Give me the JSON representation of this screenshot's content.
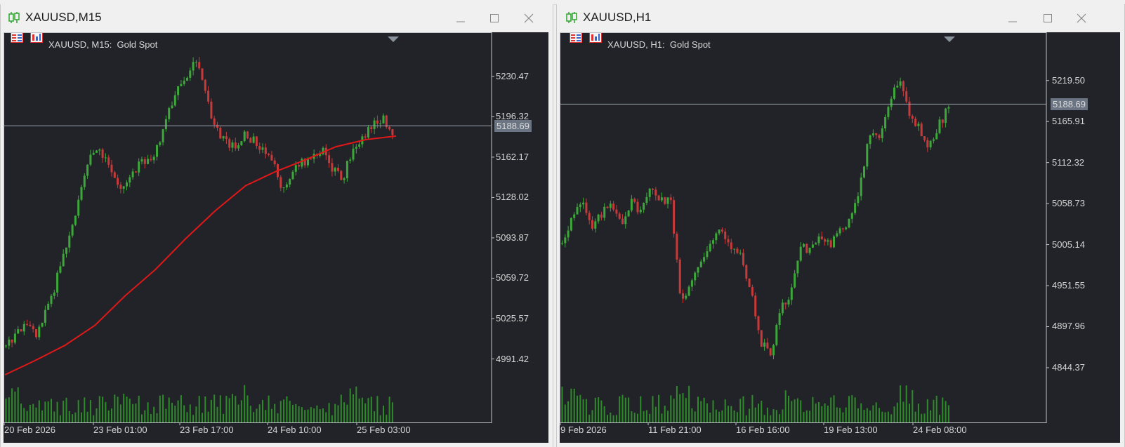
{
  "colors": {
    "chart_bg": "#222328",
    "bull": "#3da83a",
    "bear": "#c83a3a",
    "volume": "#2e8b2a",
    "ma": "#e01818",
    "grid_line": "#9aa2ac",
    "price_tag_bg": "#6a7483"
  },
  "windows": [
    {
      "title": "XAUUSD,M15",
      "legend": "XAUUSD, M15:  Gold Spot",
      "current_price": "5188.69",
      "price_labels": [
        "5230.47",
        "5196.32",
        "5162.17",
        "5128.02",
        "5093.87",
        "5059.72",
        "5025.57",
        "4991.42"
      ],
      "date_labels": [
        "20 Feb 2026",
        "23 Feb 01:00",
        "23 Feb 17:00",
        "24 Feb 10:00",
        "25 Feb 03:00"
      ],
      "icons": [
        "minimize-icon",
        "maximize-icon",
        "close-icon"
      ]
    },
    {
      "title": "XAUUSD,H1",
      "legend": "XAUUSD, H1:  Gold Spot",
      "current_price": "5188.69",
      "price_labels": [
        "5219.50",
        "5165.91",
        "5112.32",
        "5058.73",
        "5005.14",
        "4951.55",
        "4897.96",
        "4844.37"
      ],
      "date_labels": [
        "9 Feb 2026",
        "11 Feb 21:00",
        "16 Feb 16:00",
        "19 Feb 13:00",
        "24 Feb 08:00"
      ],
      "icons": [
        "minimize-icon",
        "maximize-icon",
        "close-icon"
      ]
    }
  ],
  "chart_data": [
    {
      "type": "candlestick",
      "title": "XAUUSD, M15:  Gold Spot",
      "ylim": [
        4965,
        5250
      ],
      "current_price": 5188.69,
      "x_ticks": [
        "20 Feb 2026",
        "23 Feb 01:00",
        "23 Feb 17:00",
        "24 Feb 10:00",
        "25 Feb 03:00"
      ],
      "close_path": [
        5000,
        5012,
        5025,
        5008,
        5030,
        5055,
        5085,
        5110,
        5150,
        5172,
        5160,
        5145,
        5135,
        5152,
        5160,
        5162,
        5190,
        5215,
        5225,
        5242,
        5225,
        5188,
        5178,
        5170,
        5180,
        5176,
        5168,
        5160,
        5132,
        5150,
        5158,
        5160,
        5170,
        5152,
        5145,
        5170,
        5180,
        5190,
        5194,
        5185
      ],
      "moving_average": [
        4978,
        4990,
        5003,
        5020,
        5045,
        5067,
        5093,
        5117,
        5138,
        5150,
        5160,
        5171,
        5177,
        5180
      ]
    },
    {
      "type": "candlestick",
      "title": "XAUUSD, H1:  Gold Spot",
      "ylim": [
        4815,
        5255
      ],
      "current_price": 5188.69,
      "x_ticks": [
        "9 Feb 2026",
        "11 Feb 21:00",
        "16 Feb 16:00",
        "19 Feb 13:00",
        "24 Feb 08:00"
      ],
      "close_path": [
        5010,
        5040,
        5060,
        5025,
        5045,
        5060,
        5035,
        5060,
        5050,
        5080,
        5065,
        5060,
        4930,
        4955,
        4980,
        5010,
        5030,
        5000,
        4990,
        4945,
        4880,
        4860,
        4920,
        4940,
        5000,
        5000,
        5015,
        5005,
        5020,
        5040,
        5080,
        5150,
        5145,
        5190,
        5220,
        5175,
        5160,
        5130,
        5160,
        5185
      ]
    }
  ]
}
